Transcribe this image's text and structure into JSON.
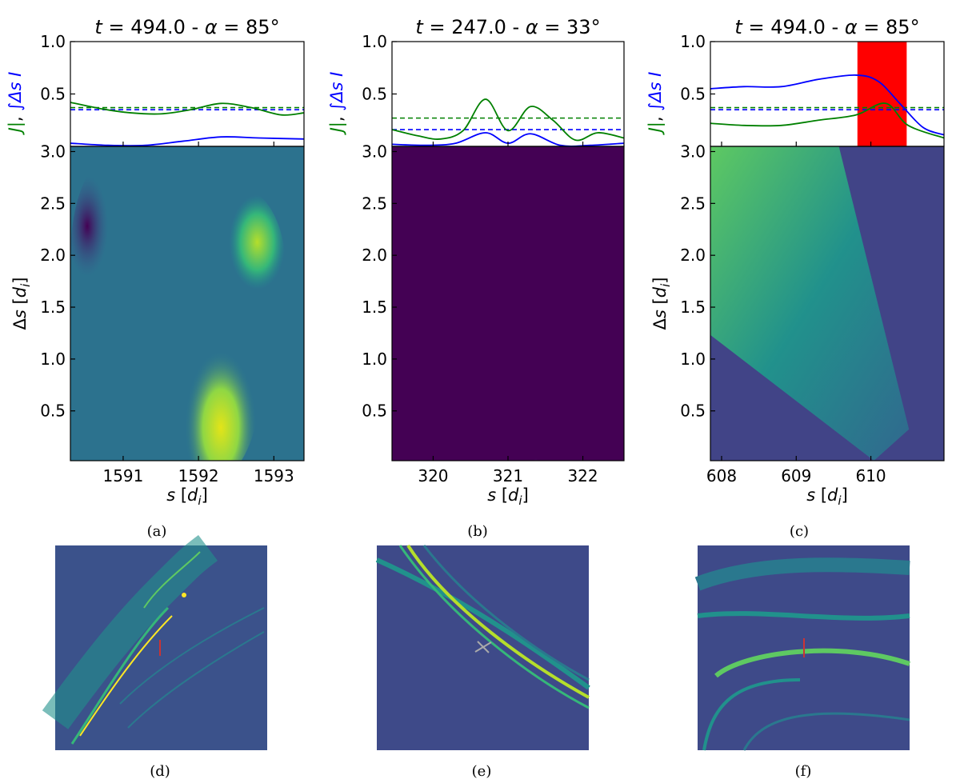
{
  "chart_data": [
    {
      "panel": "a",
      "type": "heatmap",
      "title": "t = 494.0 - α = 85°",
      "title_parts": {
        "t": "t",
        "t_value": "= 494.0 -",
        "alpha": "α",
        "alpha_value": "= 85°"
      },
      "caption": "(a)",
      "xlabel": "s [d_i]",
      "ylabel": "Δs [d_i]",
      "top_ylabel_green": "J|",
      "top_ylabel_blue": "∫Δs I",
      "xlim": [
        1590.3,
        1593.4
      ],
      "xticks": [
        1591,
        1592,
        1593
      ],
      "ylim": [
        0.02,
        3.05
      ],
      "yticks": [
        0.5,
        1.0,
        1.5,
        2.0,
        2.5,
        3.0
      ],
      "ytick_labels": [
        "0.5",
        "1.0",
        "1.5",
        "2.0",
        "2.5",
        "3.0"
      ],
      "top_ylim": [
        0.0,
        1.0
      ],
      "top_yticks": [
        0.5,
        1.0
      ],
      "green_dashed": 0.37,
      "blue_dashed": 0.35,
      "green_curve": {
        "x": [
          1590.3,
          1590.7,
          1591.1,
          1591.5,
          1591.9,
          1592.3,
          1592.7,
          1593.1,
          1593.4
        ],
        "y": [
          0.42,
          0.36,
          0.32,
          0.31,
          0.35,
          0.41,
          0.37,
          0.3,
          0.32
        ]
      },
      "blue_curve": {
        "x": [
          1590.3,
          1590.8,
          1591.3,
          1591.8,
          1592.3,
          1592.8,
          1593.4
        ],
        "y": [
          0.03,
          0.01,
          0.01,
          0.05,
          0.09,
          0.08,
          0.07
        ]
      },
      "highlight_band": null
    },
    {
      "panel": "b",
      "type": "heatmap",
      "title": "t = 247.0 - α = 33°",
      "title_parts": {
        "t": "t",
        "t_value": "= 247.0 -",
        "alpha": "α",
        "alpha_value": "= 33°"
      },
      "caption": "(b)",
      "xlabel": "s [d_i]",
      "ylabel": "",
      "top_ylabel_green": "J|",
      "top_ylabel_blue": "∫Δs I",
      "xlim": [
        319.45,
        322.55
      ],
      "xticks": [
        320,
        321,
        322
      ],
      "ylim": [
        0.02,
        3.05
      ],
      "yticks": [
        0.5,
        1.0,
        1.5,
        2.0,
        2.5,
        3.0
      ],
      "ytick_labels": [
        "0.5",
        "1.0",
        "1.5",
        "2.0",
        "2.5",
        "3.0"
      ],
      "top_ylim": [
        0.0,
        1.0
      ],
      "top_yticks": [
        0.5,
        1.0
      ],
      "green_dashed": 0.27,
      "blue_dashed": 0.16,
      "green_curve": {
        "x": [
          319.45,
          319.8,
          320.1,
          320.4,
          320.7,
          321.0,
          321.3,
          321.6,
          321.9,
          322.2,
          322.55
        ],
        "y": [
          0.16,
          0.1,
          0.07,
          0.15,
          0.45,
          0.15,
          0.38,
          0.25,
          0.06,
          0.13,
          0.08
        ]
      },
      "blue_curve": {
        "x": [
          319.45,
          319.9,
          320.3,
          320.7,
          321.0,
          321.3,
          321.7,
          322.1,
          322.55
        ],
        "y": [
          0.02,
          0.01,
          0.03,
          0.13,
          0.03,
          0.12,
          0.01,
          0.01,
          0.03
        ]
      },
      "highlight_band": null
    },
    {
      "panel": "c",
      "type": "heatmap",
      "title": "t = 494.0 - α = 85°",
      "title_parts": {
        "t": "t",
        "t_value": "= 494.0 -",
        "alpha": "α",
        "alpha_value": "= 85°"
      },
      "caption": "(c)",
      "xlabel": "s [d_i]",
      "ylabel": "Δs [d_i]",
      "top_ylabel_green": "J|",
      "top_ylabel_blue": "∫Δs I",
      "xlim": [
        607.85,
        610.98
      ],
      "xticks": [
        608,
        609,
        610
      ],
      "ylim": [
        0.02,
        3.05
      ],
      "yticks": [
        0.5,
        1.0,
        1.5,
        2.0,
        2.5,
        3.0
      ],
      "ytick_labels": [
        "0.5",
        "1.0",
        "1.5",
        "2.0",
        "2.5",
        "3.0"
      ],
      "top_ylim": [
        0.0,
        1.0
      ],
      "top_yticks": [
        0.5,
        1.0
      ],
      "green_dashed": 0.37,
      "blue_dashed": 0.35,
      "green_curve": {
        "x": [
          607.85,
          608.3,
          608.8,
          609.3,
          609.8,
          610.2,
          610.5,
          610.98
        ],
        "y": [
          0.22,
          0.2,
          0.2,
          0.25,
          0.3,
          0.41,
          0.2,
          0.08
        ]
      },
      "blue_curve": {
        "x": [
          607.85,
          608.3,
          608.8,
          609.3,
          609.8,
          610.1,
          610.4,
          610.7,
          610.98
        ],
        "y": [
          0.55,
          0.57,
          0.57,
          0.64,
          0.68,
          0.62,
          0.4,
          0.18,
          0.11
        ]
      },
      "highlight_band": [
        609.82,
        610.48
      ],
      "highlight_color": "#ff0000"
    }
  ],
  "bottom_panels": [
    {
      "caption": "(d)",
      "marker_color": "#cc3333"
    },
    {
      "caption": "(e)",
      "marker_color": "#aaaaaa"
    },
    {
      "caption": "(f)",
      "marker_color": "#cc3333"
    }
  ],
  "colors": {
    "green": "#008000",
    "blue": "#0000ff",
    "viridis_low": "#440154",
    "viridis_high": "#fde725"
  }
}
